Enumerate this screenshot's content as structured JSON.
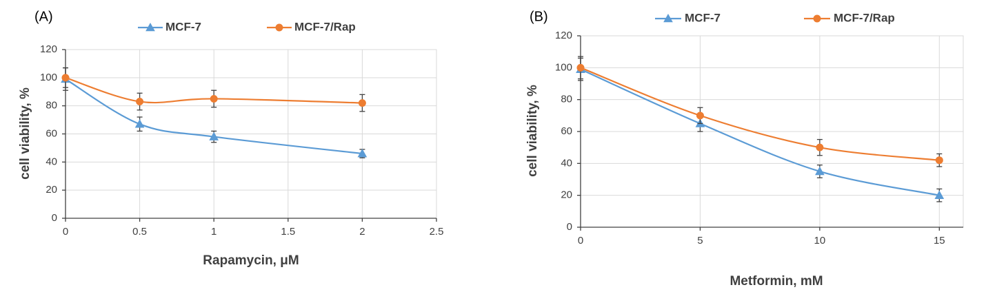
{
  "chart_data": [
    {
      "panel": "(A)",
      "type": "line",
      "xlabel": "Rapamycin, μM",
      "ylabel": "cell viability, %",
      "xlim": [
        0,
        2.5
      ],
      "ylim": [
        0,
        120
      ],
      "xticks": [
        0,
        0.5,
        1,
        1.5,
        2,
        2.5
      ],
      "xtick_labels": [
        "0",
        "0.5",
        "1",
        "1.5",
        "2",
        "2.5"
      ],
      "yticks": [
        0,
        20,
        40,
        60,
        80,
        100,
        120
      ],
      "ytick_labels": [
        "0",
        "20",
        "40",
        "60",
        "80",
        "100",
        "120"
      ],
      "grid": true,
      "legend_position": "top",
      "series": [
        {
          "name": "MCF-7",
          "color": "#5b9bd5",
          "marker": "triangle",
          "x": [
            0,
            0.5,
            1,
            2
          ],
          "values": [
            99,
            67,
            58,
            46
          ],
          "errors": [
            8,
            5,
            4,
            3
          ]
        },
        {
          "name": "MCF-7/Rap",
          "color": "#ed7d31",
          "marker": "circle",
          "x": [
            0,
            0.5,
            1,
            2
          ],
          "values": [
            100,
            83,
            85,
            82
          ],
          "errors": [
            7,
            6,
            6,
            6
          ]
        }
      ]
    },
    {
      "panel": "(B)",
      "type": "line",
      "xlabel": "Metformin, mM",
      "ylabel": "cell viability, %",
      "xlim": [
        0,
        16
      ],
      "ylim": [
        0,
        120
      ],
      "xticks": [
        0,
        5,
        10,
        15
      ],
      "xtick_labels": [
        "0",
        "5",
        "10",
        "15"
      ],
      "yticks": [
        0,
        20,
        40,
        60,
        80,
        100,
        120
      ],
      "ytick_labels": [
        "0",
        "20",
        "40",
        "60",
        "80",
        "100",
        "120"
      ],
      "grid": true,
      "legend_position": "top",
      "series": [
        {
          "name": "MCF-7",
          "color": "#5b9bd5",
          "marker": "triangle",
          "x": [
            0,
            5,
            10,
            15
          ],
          "values": [
            99,
            65,
            35,
            20
          ],
          "errors": [
            7,
            5,
            4,
            4
          ]
        },
        {
          "name": "MCF-7/Rap",
          "color": "#ed7d31",
          "marker": "circle",
          "x": [
            0,
            5,
            10,
            15
          ],
          "values": [
            100,
            70,
            50,
            42
          ],
          "errors": [
            7,
            5,
            5,
            4
          ]
        }
      ]
    }
  ]
}
